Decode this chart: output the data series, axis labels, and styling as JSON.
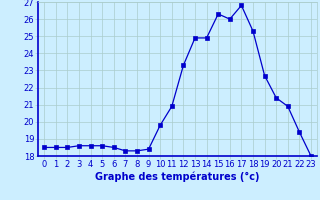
{
  "x": [
    0,
    1,
    2,
    3,
    4,
    5,
    6,
    7,
    8,
    9,
    10,
    11,
    12,
    13,
    14,
    15,
    16,
    17,
    18,
    19,
    20,
    21,
    22,
    23
  ],
  "y": [
    18.5,
    18.5,
    18.5,
    18.6,
    18.6,
    18.6,
    18.5,
    18.3,
    18.3,
    18.4,
    19.8,
    20.9,
    23.3,
    24.9,
    24.9,
    26.3,
    26.0,
    26.8,
    25.3,
    22.7,
    21.4,
    20.9,
    19.4,
    18.0
  ],
  "line_color": "#0000cc",
  "marker": "s",
  "markersize": 2.2,
  "linewidth": 0.9,
  "xlabel": "Graphe des températures (°c)",
  "ylim": [
    18,
    27
  ],
  "yticks": [
    18,
    19,
    20,
    21,
    22,
    23,
    24,
    25,
    26,
    27
  ],
  "xticks": [
    0,
    1,
    2,
    3,
    4,
    5,
    6,
    7,
    8,
    9,
    10,
    11,
    12,
    13,
    14,
    15,
    16,
    17,
    18,
    19,
    20,
    21,
    22,
    23
  ],
  "bg_color": "#cceeff",
  "grid_color": "#aacccc",
  "axis_color": "#0000cc",
  "tick_color": "#0000cc",
  "label_color": "#0000cc",
  "xlabel_fontsize": 7,
  "tick_fontsize": 6
}
